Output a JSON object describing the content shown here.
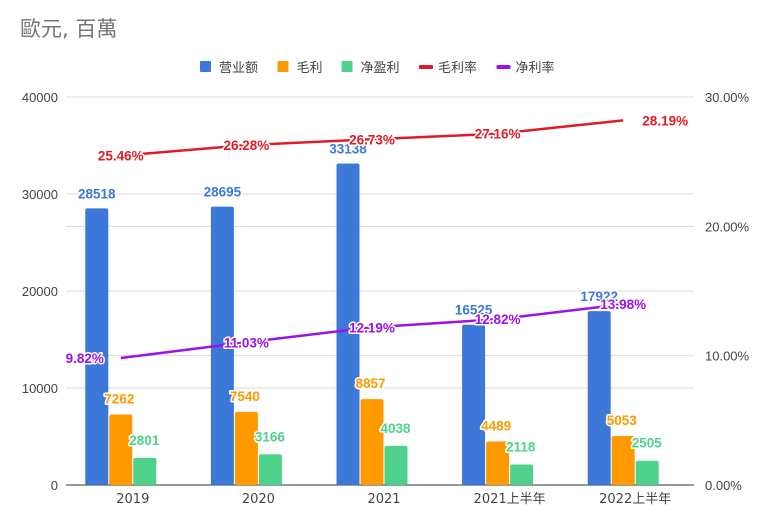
{
  "chart_data": {
    "type": "bar",
    "combo": "bar + line (dual axis)",
    "title": "歐元, 百萬",
    "categories": [
      "2019",
      "2020",
      "2021",
      "2021上半年",
      "2022上半年"
    ],
    "series": [
      {
        "name": "营业额",
        "type": "bar",
        "axis": "left",
        "color": "#3c78d8",
        "values": [
          28518,
          28695,
          33138,
          16525,
          17922
        ]
      },
      {
        "name": "毛利",
        "type": "bar",
        "axis": "left",
        "color": "#ff9900",
        "values": [
          7262,
          7540,
          8857,
          4489,
          5053
        ]
      },
      {
        "name": "净盈利",
        "type": "bar",
        "axis": "left",
        "color": "#4ed28b",
        "values": [
          2801,
          3166,
          4038,
          2118,
          2505
        ]
      },
      {
        "name": "毛利率",
        "type": "line",
        "axis": "right",
        "color": "#e01b24",
        "values": [
          25.46,
          26.28,
          26.73,
          27.16,
          28.19
        ],
        "labels": [
          "25.46%",
          "26.28%",
          "26.73%",
          "27.16%",
          "28.19%"
        ]
      },
      {
        "name": "净利率",
        "type": "line",
        "axis": "right",
        "color": "#9b11e8",
        "values": [
          9.82,
          11.03,
          12.19,
          12.82,
          13.98
        ],
        "labels": [
          "9.82%",
          "11.03%",
          "12.19%",
          "12.82%",
          "13.98%"
        ]
      }
    ],
    "left_axis": {
      "min": 0,
      "max": 40000,
      "ticks": [
        "0",
        "10000",
        "20000",
        "30000",
        "40000"
      ]
    },
    "right_axis": {
      "min": 0,
      "max": 30,
      "ticks": [
        "0.00%",
        "10.00%",
        "20.00%",
        "30.00%"
      ]
    },
    "legend_position": "top-center",
    "grid": true,
    "xlabel": "",
    "ylabel": ""
  }
}
